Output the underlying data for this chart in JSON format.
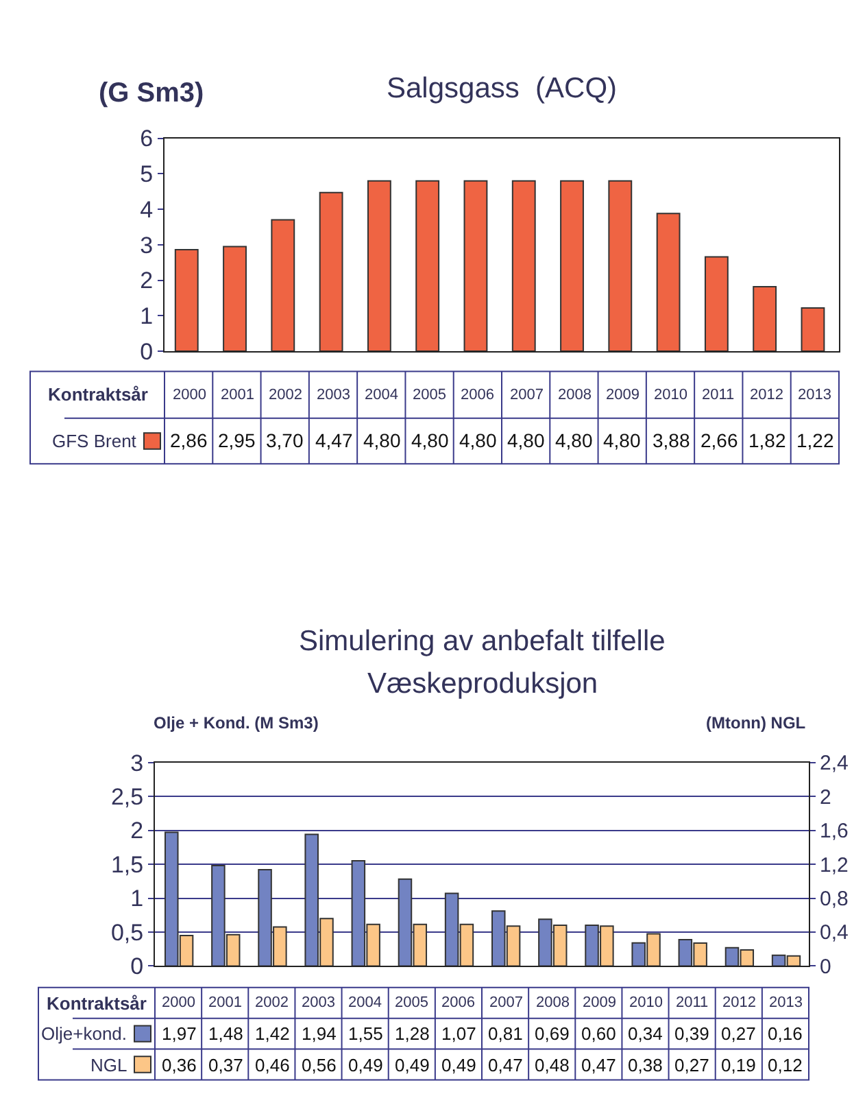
{
  "chart_data": [
    {
      "type": "bar",
      "title": "Salgsgass  (ACQ)",
      "ylabel": "(G Sm3)",
      "xlabel": "Kontraktsår",
      "categories": [
        "2000",
        "2001",
        "2002",
        "2003",
        "2004",
        "2005",
        "2006",
        "2007",
        "2008",
        "2009",
        "2010",
        "2011",
        "2012",
        "2013"
      ],
      "series": [
        {
          "name": "GFS Brent",
          "color": "#ef6443",
          "values": [
            2.86,
            2.95,
            3.7,
            4.47,
            4.8,
            4.8,
            4.8,
            4.8,
            4.8,
            4.8,
            3.88,
            2.66,
            1.82,
            1.22
          ],
          "value_labels": [
            "2,86",
            "2,95",
            "3,70",
            "4,47",
            "4,80",
            "4,80",
            "4,80",
            "4,80",
            "4,80",
            "4,80",
            "3,88",
            "2,66",
            "1,82",
            "1,22"
          ]
        }
      ],
      "ylim": [
        0,
        6
      ],
      "yticks": [
        0,
        1,
        2,
        3,
        4,
        5,
        6
      ],
      "legend": "bottom left"
    },
    {
      "type": "bar",
      "title": "Simulering av anbefalt tilfelle",
      "subtitle": "Væskeproduksjon",
      "ylabel": "Olje + Kond. (M Sm3)",
      "y2label": "(Mtonn) NGL",
      "xlabel": "Kontraktsår",
      "categories": [
        "2000",
        "2001",
        "2002",
        "2003",
        "2004",
        "2005",
        "2006",
        "2007",
        "2008",
        "2009",
        "2010",
        "2011",
        "2012",
        "2013"
      ],
      "series": [
        {
          "name": "Olje+kond.",
          "color": "#7283c2",
          "values": [
            1.97,
            1.48,
            1.42,
            1.94,
            1.55,
            1.28,
            1.07,
            0.81,
            0.69,
            0.6,
            0.34,
            0.39,
            0.27,
            0.16
          ],
          "value_labels": [
            "1,97",
            "1,48",
            "1,42",
            "1,94",
            "1,55",
            "1,28",
            "1,07",
            "0,81",
            "0,69",
            "0,60",
            "0,34",
            "0,39",
            "0,27",
            "0,16"
          ]
        },
        {
          "name": "NGL",
          "color": "#fcc687",
          "axis": "y2",
          "values": [
            0.36,
            0.37,
            0.46,
            0.56,
            0.49,
            0.49,
            0.49,
            0.47,
            0.48,
            0.47,
            0.38,
            0.27,
            0.19,
            0.12
          ],
          "value_labels": [
            "0,36",
            "0,37",
            "0,46",
            "0,56",
            "0,49",
            "0,49",
            "0,49",
            "0,47",
            "0,48",
            "0,47",
            "0,38",
            "0,27",
            "0,19",
            "0,12"
          ]
        }
      ],
      "ylim": [
        0,
        3
      ],
      "yticks": [
        0,
        {
          "value": 0.5,
          "label": "0,5"
        },
        1,
        {
          "value": 1.5,
          "label": "1,5"
        },
        2,
        {
          "value": 2.5,
          "label": "2,5"
        },
        3
      ],
      "y2lim": [
        0,
        2.4
      ],
      "y2ticks": [
        0,
        {
          "value": 0.4,
          "label": "0,4"
        },
        {
          "value": 0.8,
          "label": "0,8"
        },
        {
          "value": 1.2,
          "label": "1,2"
        },
        {
          "value": 1.6,
          "label": "1,6"
        },
        2,
        {
          "value": 2.4,
          "label": "2,4"
        }
      ],
      "grid": "y",
      "legend": "bottom left"
    }
  ]
}
